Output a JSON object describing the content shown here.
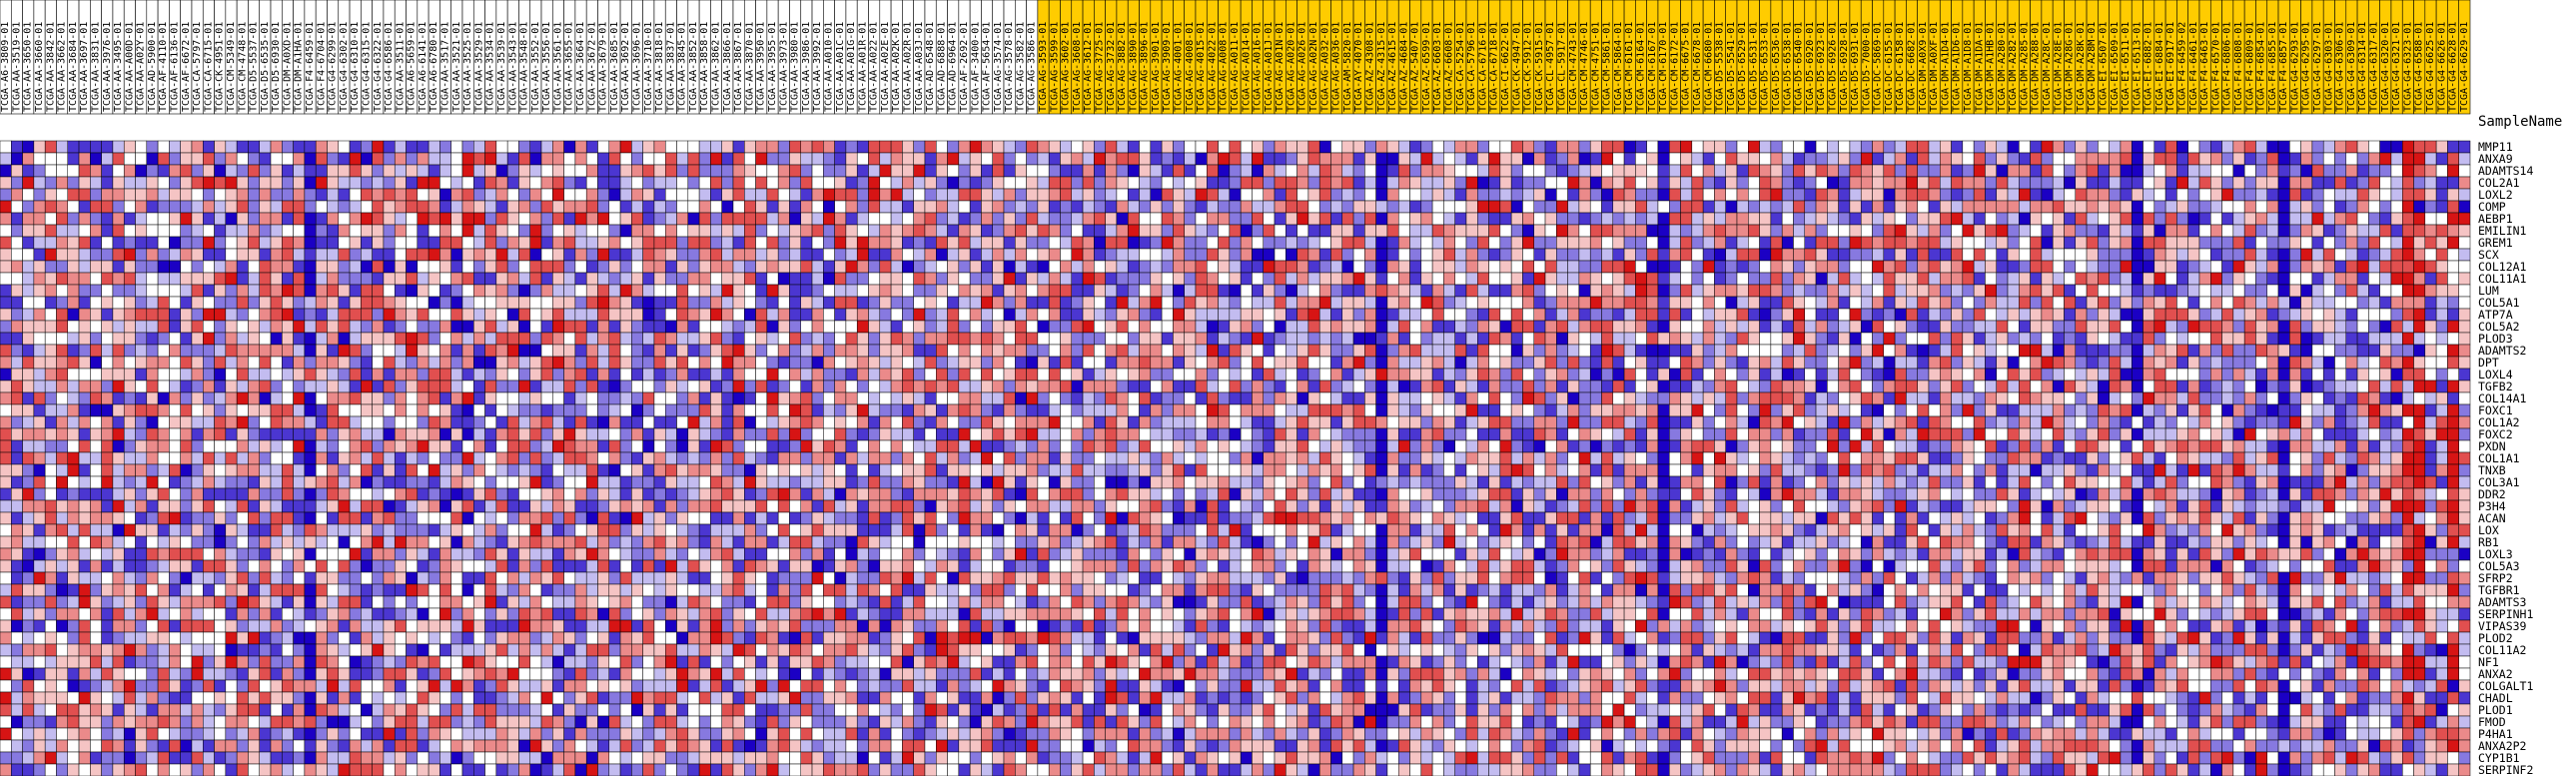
{
  "chart_data": {
    "type": "heatmap",
    "row_header_title": "SampleName",
    "group_colors": {
      "group_1": "#ffffff",
      "group_2": "#ffcc00"
    },
    "color_scale": {
      "low": "#1b00c4",
      "mid": "#ffffff",
      "high": "#d40000"
    },
    "value_range": [
      -1,
      1
    ],
    "genes": [
      "MMP11",
      "ANXA9",
      "ADAMTS14",
      "COL2A1",
      "LOXL2",
      "COMP",
      "AEBP1",
      "EMILIN1",
      "GREM1",
      "SCX",
      "COL12A1",
      "COL11A1",
      "LUM",
      "COL5A1",
      "ATP7A",
      "COL5A2",
      "PLOD3",
      "ADAMTS2",
      "DPT",
      "LOXL4",
      "TGFB2",
      "COL14A1",
      "FOXC1",
      "COL1A2",
      "FOXC2",
      "PXDN",
      "COL1A1",
      "TNXB",
      "COL3A1",
      "DDR2",
      "P3H4",
      "ACAN",
      "LOX",
      "RB1",
      "LOXL3",
      "COL5A3",
      "SFRP2",
      "TGFBR1",
      "ADAMTS3",
      "SERPINH1",
      "VIPAS39",
      "PLOD2",
      "COL11A2",
      "NF1",
      "ANXA2",
      "COLGALT1",
      "CHADL",
      "PLOD1",
      "FMOD",
      "P4HA1",
      "ANXA2P2",
      "CYP1B1",
      "SERPINF2"
    ],
    "samples": [
      "TCGA-A6-3809-01",
      "TCGA-AA-3519-01",
      "TCGA-AA-3650-01",
      "TCGA-AA-3660-01",
      "TCGA-AA-3842-01",
      "TCGA-AA-3662-01",
      "TCGA-AA-3684-01",
      "TCGA-AA-3697-01",
      "TCGA-AA-3831-01",
      "TCGA-AA-3976-01",
      "TCGA-AA-3495-01",
      "TCGA-AA-A00D-01",
      "TCGA-AA-A02Y-01",
      "TCGA-AD-5900-01",
      "TCGA-AF-4110-01",
      "TCGA-AF-6136-01",
      "TCGA-AF-6672-01",
      "TCGA-CA-5797-01",
      "TCGA-CA-6715-01",
      "TCGA-CK-4951-01",
      "TCGA-CM-5349-01",
      "TCGA-CM-4748-01",
      "TCGA-D5-5537-01",
      "TCGA-D5-6535-01",
      "TCGA-D5-6930-01",
      "TCGA-DM-A0XD-01",
      "TCGA-DM-A1HA-01",
      "TCGA-F4-6459-01",
      "TCGA-F4-6704-01",
      "TCGA-G4-6299-01",
      "TCGA-G4-6302-01",
      "TCGA-G4-6310-01",
      "TCGA-G4-6315-01",
      "TCGA-G4-6322-01",
      "TCGA-G4-6586-01",
      "TCGA-AA-3511-01",
      "TCGA-A6-5659-01",
      "TCGA-A6-6141-01",
      "TCGA-A6-6780-01",
      "TCGA-AA-3517-01",
      "TCGA-AA-3521-01",
      "TCGA-AA-3525-01",
      "TCGA-AA-3529-01",
      "TCGA-AA-3534-01",
      "TCGA-AA-3539-01",
      "TCGA-AA-3543-01",
      "TCGA-AA-3548-01",
      "TCGA-AA-3552-01",
      "TCGA-AA-3556-01",
      "TCGA-AA-3561-01",
      "TCGA-AA-3655-01",
      "TCGA-AA-3664-01",
      "TCGA-AA-3672-01",
      "TCGA-AA-3679-01",
      "TCGA-AA-3685-01",
      "TCGA-AA-3692-01",
      "TCGA-AA-3696-01",
      "TCGA-AA-3710-01",
      "TCGA-AA-3818-01",
      "TCGA-AA-3837-01",
      "TCGA-AA-3845-01",
      "TCGA-AA-3852-01",
      "TCGA-AA-3858-01",
      "TCGA-AA-3862-01",
      "TCGA-AA-3866-01",
      "TCGA-AA-3867-01",
      "TCGA-AA-3870-01",
      "TCGA-AA-3950-01",
      "TCGA-AA-3955-01",
      "TCGA-AA-3973-01",
      "TCGA-AA-3980-01",
      "TCGA-AA-3986-01",
      "TCGA-AA-3992-01",
      "TCGA-AA-A010-01",
      "TCGA-AA-A01C-01",
      "TCGA-AA-A01G-01",
      "TCGA-AA-A01R-01",
      "TCGA-AA-A022-01",
      "TCGA-AA-A02E-01",
      "TCGA-AA-A02K-01",
      "TCGA-AA-A02R-01",
      "TCGA-AA-A03J-01",
      "TCGA-AD-6548-01",
      "TCGA-AD-6888-01",
      "TCGA-AD-6964-01",
      "TCGA-AF-2692-01",
      "TCGA-AF-3400-01",
      "TCGA-AF-5654-01",
      "TCGA-AG-3574-01",
      "TCGA-AG-3578-01",
      "TCGA-AG-3582-01",
      "TCGA-AG-3586-01",
      "TCGA-AG-3593-01",
      "TCGA-AG-3599-01",
      "TCGA-AG-3602-01",
      "TCGA-AG-3608-01",
      "TCGA-AG-3612-01",
      "TCGA-AG-3725-01",
      "TCGA-AG-3732-01",
      "TCGA-AG-3882-01",
      "TCGA-AG-3890-01",
      "TCGA-AG-3896-01",
      "TCGA-AG-3901-01",
      "TCGA-AG-3909-01",
      "TCGA-AG-4001-01",
      "TCGA-AG-4008-01",
      "TCGA-AG-4015-01",
      "TCGA-AG-4022-01",
      "TCGA-AG-A008-01",
      "TCGA-AG-A011-01",
      "TCGA-AG-A014-01",
      "TCGA-AG-A016-01",
      "TCGA-AG-A01J-01",
      "TCGA-AG-A01N-01",
      "TCGA-AG-A020-01",
      "TCGA-AG-A026-01",
      "TCGA-AG-A02N-01",
      "TCGA-AG-A032-01",
      "TCGA-AG-A036-01",
      "TCGA-AM-5820-01",
      "TCGA-AY-4070-01",
      "TCGA-AZ-4308-01",
      "TCGA-AZ-4315-01",
      "TCGA-AZ-4615-01",
      "TCGA-AZ-4684-01",
      "TCGA-AZ-5407-01",
      "TCGA-AZ-6599-01",
      "TCGA-AZ-6603-01",
      "TCGA-AZ-6608-01",
      "TCGA-CA-5254-01",
      "TCGA-CA-5796-01",
      "TCGA-CA-6716-01",
      "TCGA-CA-6718-01",
      "TCGA-CI-6622-01",
      "TCGA-CK-4947-01",
      "TCGA-CK-5912-01",
      "TCGA-CK-5915-01",
      "TCGA-CL-4957-01",
      "TCGA-CL-5917-01",
      "TCGA-CM-4743-01",
      "TCGA-CM-4746-01",
      "TCGA-CM-4751-01",
      "TCGA-CM-5861-01",
      "TCGA-CM-5864-01",
      "TCGA-CM-6161-01",
      "TCGA-CM-6164-01",
      "TCGA-CM-6167-01",
      "TCGA-CM-6170-01",
      "TCGA-CM-6172-01",
      "TCGA-CM-6675-01",
      "TCGA-CM-6678-01",
      "TCGA-CM-6680-01",
      "TCGA-D5-5538-01",
      "TCGA-D5-5541-01",
      "TCGA-D5-6529-01",
      "TCGA-D5-6531-01",
      "TCGA-D5-6533-01",
      "TCGA-D5-6536-01",
      "TCGA-D5-6538-01",
      "TCGA-D5-6540-01",
      "TCGA-D5-6920-01",
      "TCGA-D5-6923-01",
      "TCGA-D5-6926-01",
      "TCGA-D5-6928-01",
      "TCGA-D5-6931-01",
      "TCGA-D5-7000-01",
      "TCGA-DC-5869-01",
      "TCGA-DC-6155-01",
      "TCGA-DC-6158-01",
      "TCGA-DC-6682-01",
      "TCGA-DM-A0X9-01",
      "TCGA-DM-A0XF-01",
      "TCGA-DM-A1D4-01",
      "TCGA-DM-A1D6-01",
      "TCGA-DM-A1D8-01",
      "TCGA-DM-A1DA-01",
      "TCGA-DM-A1HB-01",
      "TCGA-DM-A280-01",
      "TCGA-DM-A282-01",
      "TCGA-DM-A285-01",
      "TCGA-DM-A288-01",
      "TCGA-DM-A28C-01",
      "TCGA-DM-A28E-01",
      "TCGA-DM-A28G-01",
      "TCGA-DM-A28K-01",
      "TCGA-DM-A28M-01",
      "TCGA-EI-6507-01",
      "TCGA-EI-6509-01",
      "TCGA-EI-6511-01",
      "TCGA-EI-6513-01",
      "TCGA-EI-6882-01",
      "TCGA-EI-6884-01",
      "TCGA-EI-6917-01",
      "TCGA-F4-6459-02",
      "TCGA-F4-6461-01",
      "TCGA-F4-6463-01",
      "TCGA-F4-6570-01",
      "TCGA-F4-6806-01",
      "TCGA-F4-6808-01",
      "TCGA-F4-6809-01",
      "TCGA-F4-6854-01",
      "TCGA-F4-6855-01",
      "TCGA-F4-6857-01",
      "TCGA-G4-6293-01",
      "TCGA-G4-6295-01",
      "TCGA-G4-6297-01",
      "TCGA-G4-6303-01",
      "TCGA-G4-6306-01",
      "TCGA-G4-6309-01",
      "TCGA-G4-6314-01",
      "TCGA-G4-6317-01",
      "TCGA-G4-6320-01",
      "TCGA-G4-6321-01",
      "TCGA-G4-6323-01",
      "TCGA-G4-6588-01",
      "TCGA-G4-6625-01",
      "TCGA-G4-6626-01",
      "TCGA-G4-6628-01",
      "TCGA-G4-6629-01"
    ],
    "sample_groups": [
      1,
      1,
      1,
      1,
      1,
      1,
      1,
      1,
      1,
      1,
      1,
      1,
      1,
      1,
      1,
      1,
      1,
      1,
      1,
      1,
      1,
      1,
      1,
      1,
      1,
      1,
      1,
      1,
      1,
      1,
      1,
      1,
      1,
      1,
      1,
      1,
      1,
      1,
      1,
      1,
      1,
      1,
      1,
      1,
      1,
      1,
      1,
      1,
      1,
      1,
      1,
      1,
      1,
      1,
      1,
      1,
      1,
      1,
      1,
      1,
      1,
      1,
      1,
      1,
      1,
      1,
      1,
      1,
      1,
      1,
      1,
      1,
      1,
      1,
      1,
      1,
      1,
      1,
      1,
      1,
      1,
      1,
      1,
      1,
      1,
      1,
      1,
      1,
      1,
      1,
      1,
      1,
      2,
      2,
      2,
      2,
      2,
      2,
      2,
      2,
      2,
      2,
      2,
      2,
      2,
      2,
      2,
      2,
      2,
      2,
      2,
      2,
      2,
      2,
      2,
      2,
      2,
      2,
      2,
      2,
      2,
      2,
      2,
      2,
      2,
      2,
      2,
      2,
      2,
      2,
      2,
      2,
      2,
      2,
      2,
      2,
      2,
      2,
      2,
      2,
      2,
      2,
      2,
      2,
      2,
      2,
      2,
      2,
      2,
      2,
      2,
      2,
      2,
      2,
      2,
      2,
      2,
      2,
      2,
      2,
      2,
      2,
      2,
      2,
      2,
      2,
      2,
      2,
      2,
      2,
      2,
      2,
      2,
      2,
      2,
      2,
      2,
      2,
      2,
      2,
      2,
      2,
      2,
      2,
      2,
      2,
      2,
      2,
      2,
      2,
      2,
      2,
      2,
      2,
      2,
      2,
      2,
      2,
      2,
      2,
      2,
      2,
      2,
      2,
      2,
      2,
      2,
      2,
      2,
      2,
      2,
      2,
      2,
      2,
      2,
      2,
      2,
      2,
      2,
      2,
      2,
      2,
      2,
      2,
      2,
      2,
      2,
      2,
      2,
      2,
      2,
      2,
      2,
      2,
      2,
      2,
      2,
      2,
      2,
      2,
      2,
      2,
      2,
      2,
      2,
      2,
      2,
      2,
      2,
      2,
      2
    ],
    "value_seed": 20240517
  }
}
